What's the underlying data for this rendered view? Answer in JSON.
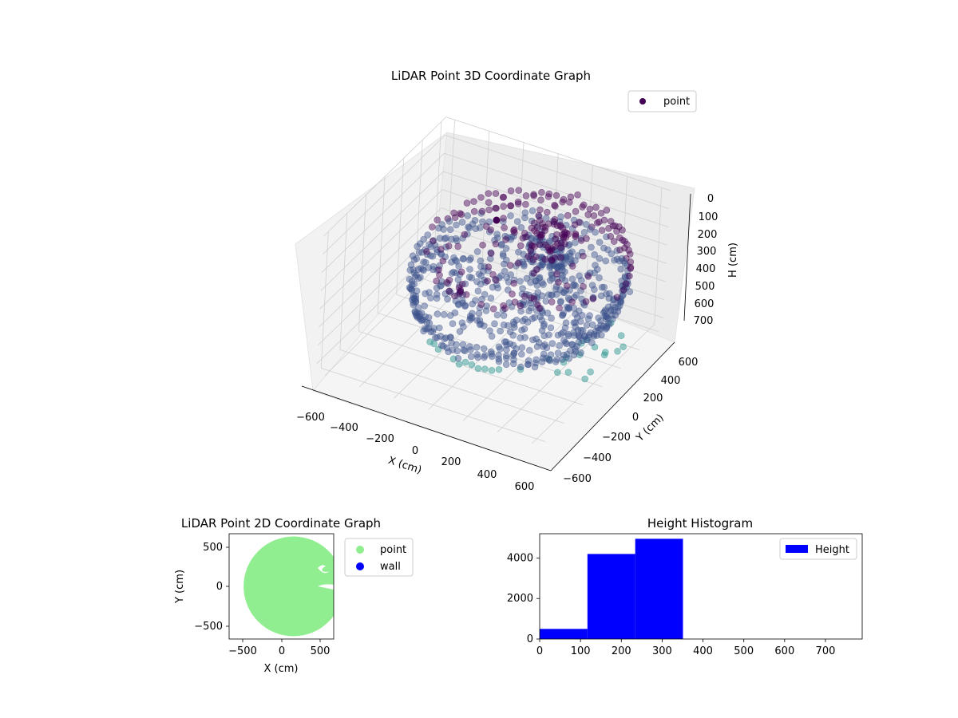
{
  "colors": {
    "point_dark": "#440154",
    "point_mid": "#3b528b",
    "point_teal": "#21918c",
    "point_2d": "#90ee90",
    "wall_2d": "#0000ff",
    "hist_bar": "#0000ff",
    "pane": "#f2f2f2",
    "grid": "#d0d0d0"
  },
  "chart_data": [
    {
      "type": "scatter",
      "projection": "3d",
      "title": "LiDAR Point 3D Coordinate Graph",
      "xlabel": "X (cm)",
      "ylabel": "Y (cm)",
      "zlabel": "H (cm)",
      "xticks": [
        "−600",
        "−400",
        "−200",
        "0",
        "200",
        "400",
        "600"
      ],
      "yticks": [
        "−600",
        "−400",
        "−200",
        "0",
        "200",
        "400",
        "600"
      ],
      "zticks": [
        "0",
        "100",
        "200",
        "300",
        "400",
        "500",
        "600",
        "700"
      ],
      "xlim": [
        -650,
        650
      ],
      "ylim": [
        -650,
        650
      ],
      "zlim": [
        0,
        750
      ],
      "z_inverted": true,
      "grid": true,
      "legend": {
        "placement": "top-right",
        "entries": [
          "point"
        ]
      },
      "series": [
        {
          "name": "point",
          "description_points": [
            {
              "x": -300,
              "y": 500,
              "h": 150
            },
            {
              "x": 0,
              "y": 600,
              "h": 150
            },
            {
              "x": 300,
              "y": 500,
              "h": 180
            },
            {
              "x": 550,
              "y": 200,
              "h": 300
            },
            {
              "x": 600,
              "y": 0,
              "h": 400
            },
            {
              "x": 500,
              "y": -300,
              "h": 500
            },
            {
              "x": 300,
              "y": -450,
              "h": 550
            },
            {
              "x": 0,
              "y": -550,
              "h": 600
            },
            {
              "x": -300,
              "y": -450,
              "h": 600
            },
            {
              "x": -550,
              "y": -100,
              "h": 400
            },
            {
              "x": 200,
              "y": 200,
              "h": 250
            },
            {
              "x": 100,
              "y": 150,
              "h": 280
            }
          ]
        }
      ]
    },
    {
      "type": "scatter",
      "title": "LiDAR Point 2D Coordinate Graph",
      "xlabel": "X (cm)",
      "ylabel": "Y (cm)",
      "xticks": [
        "−500",
        "0",
        "500"
      ],
      "yticks": [
        "500",
        "0",
        "−500"
      ],
      "xlim": [
        -650,
        650
      ],
      "ylim": [
        -650,
        650
      ],
      "legend": {
        "placement": "outside-right",
        "entries": [
          "point",
          "wall"
        ]
      },
      "series": [
        {
          "name": "point",
          "shape": "disc",
          "center": [
            150,
            0
          ],
          "radius": 620
        },
        {
          "name": "wall",
          "values": []
        }
      ]
    },
    {
      "type": "bar",
      "title": "Height Histogram",
      "xticks": [
        "0",
        "100",
        "200",
        "300",
        "400",
        "500",
        "600",
        "700"
      ],
      "yticks": [
        "0",
        "2000",
        "4000"
      ],
      "xlim": [
        0,
        790
      ],
      "ylim": [
        0,
        5200
      ],
      "legend": {
        "placement": "top-right",
        "entries": [
          "Height"
        ]
      },
      "series": [
        {
          "name": "Height",
          "bins": [
            {
              "from": 0,
              "to": 117,
              "count": 500
            },
            {
              "from": 117,
              "to": 234,
              "count": 4200
            },
            {
              "from": 234,
              "to": 351,
              "count": 4950
            }
          ]
        }
      ]
    }
  ]
}
